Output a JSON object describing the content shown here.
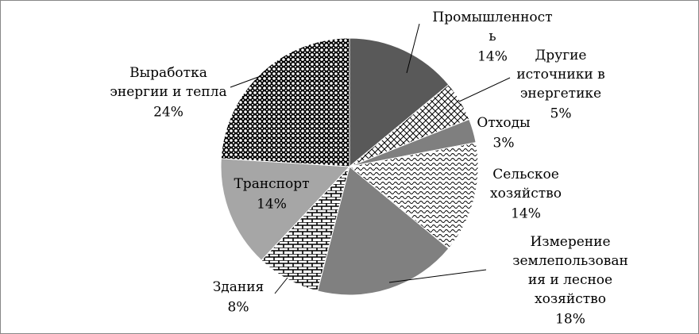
{
  "chart_data": {
    "type": "pie",
    "categories": [
      "Промышленност\nь",
      "Другие\nисточники в\nэнергетике",
      "Отходы",
      "Сельское\nхозяйство",
      "Измерение\nземлепользован\nия и лесное\nхозяйство",
      "Здания",
      "Транспорт",
      "Выработка\nэнергии и тепла"
    ],
    "values": [
      14,
      5,
      3,
      14,
      18,
      8,
      14,
      24
    ],
    "value_labels": [
      "14%",
      "5%",
      "3%",
      "14%",
      "18%",
      "8%",
      "14%",
      "24%"
    ]
  }
}
